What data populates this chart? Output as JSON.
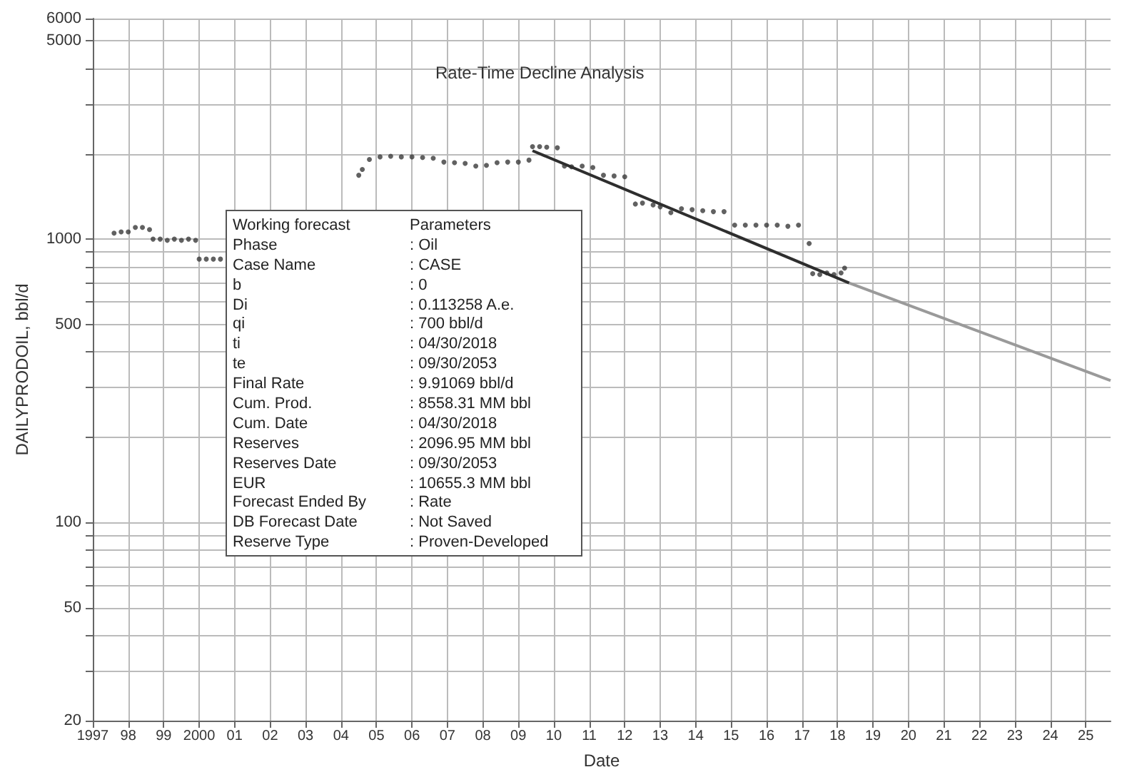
{
  "chart_data": {
    "type": "scatter",
    "title": "Rate-Time Decline Analysis",
    "xlabel": "Date",
    "ylabel": "DAILYPRODOIL, bbl/d",
    "log": "y",
    "grid": true,
    "marker": "circle",
    "xlim": [
      1997,
      2025.7
    ],
    "ylim": [
      20,
      6000
    ],
    "xticks": [
      {
        "value": 1997,
        "label": "1997"
      },
      {
        "value": 1998,
        "label": "98"
      },
      {
        "value": 1999,
        "label": "99"
      },
      {
        "value": 2000,
        "label": "2000"
      },
      {
        "value": 2001,
        "label": "01"
      },
      {
        "value": 2002,
        "label": "02"
      },
      {
        "value": 2003,
        "label": "03"
      },
      {
        "value": 2004,
        "label": "04"
      },
      {
        "value": 2005,
        "label": "05"
      },
      {
        "value": 2006,
        "label": "06"
      },
      {
        "value": 2007,
        "label": "07"
      },
      {
        "value": 2008,
        "label": "08"
      },
      {
        "value": 2009,
        "label": "09"
      },
      {
        "value": 2010,
        "label": "10"
      },
      {
        "value": 2011,
        "label": "11"
      },
      {
        "value": 2012,
        "label": "12"
      },
      {
        "value": 2013,
        "label": "13"
      },
      {
        "value": 2014,
        "label": "14"
      },
      {
        "value": 2015,
        "label": "15"
      },
      {
        "value": 2016,
        "label": "16"
      },
      {
        "value": 2017,
        "label": "17"
      },
      {
        "value": 2018,
        "label": "18"
      },
      {
        "value": 2019,
        "label": "19"
      },
      {
        "value": 2020,
        "label": "20"
      },
      {
        "value": 2021,
        "label": "21"
      },
      {
        "value": 2022,
        "label": "22"
      },
      {
        "value": 2023,
        "label": "23"
      },
      {
        "value": 2024,
        "label": "24"
      },
      {
        "value": 2025,
        "label": "25"
      }
    ],
    "yticks": [
      20,
      {
        "value": 30,
        "label": null
      },
      {
        "value": 40,
        "label": null
      },
      50,
      {
        "value": 60,
        "label": null
      },
      {
        "value": 70,
        "label": null
      },
      {
        "value": 80,
        "label": null
      },
      {
        "value": 90,
        "label": null
      },
      100,
      {
        "value": 200,
        "label": null
      },
      {
        "value": 300,
        "label": null
      },
      {
        "value": 400,
        "label": null
      },
      500,
      {
        "value": 600,
        "label": null
      },
      {
        "value": 700,
        "label": null
      },
      {
        "value": 800,
        "label": null
      },
      {
        "value": 900,
        "label": null
      },
      1000,
      {
        "value": 2000,
        "label": null
      },
      {
        "value": 3000,
        "label": null
      },
      {
        "value": 4000,
        "label": null
      },
      5000,
      6000
    ],
    "series": [
      {
        "color": "#3a3a3a",
        "x": [
          1997.6,
          1997.8,
          1998.0,
          1998.2,
          1998.4,
          1998.6,
          1998.7,
          1998.9,
          1999.1,
          1999.3,
          1999.5,
          1999.7,
          1999.9,
          2000.0,
          2000.2,
          2000.4,
          2000.6,
          2004.5,
          2004.6,
          2004.8,
          2005.1,
          2005.4,
          2005.7,
          2006.0,
          2006.3,
          2006.6,
          2006.9,
          2007.2,
          2007.5,
          2007.8,
          2008.1,
          2008.4,
          2008.7,
          2009.0,
          2009.3,
          2009.4,
          2009.6,
          2009.8,
          2010.1,
          2010.3,
          2010.5,
          2010.8,
          2011.1,
          2011.4,
          2011.7,
          2012.0,
          2012.3,
          2012.5,
          2012.8,
          2013.0,
          2013.3,
          2013.6,
          2013.9,
          2014.2,
          2014.5,
          2014.8,
          2015.1,
          2015.4,
          2015.7,
          2016.0,
          2016.3,
          2016.6,
          2016.9,
          2017.2,
          2017.3,
          2017.5,
          2017.7,
          2017.9,
          2018.1,
          2018.2
        ],
        "values": [
          1050,
          1060,
          1060,
          1100,
          1100,
          1080,
          1000,
          1000,
          990,
          1000,
          990,
          1000,
          990,
          850,
          850,
          850,
          850,
          1680,
          1760,
          1910,
          1950,
          1960,
          1950,
          1950,
          1940,
          1930,
          1870,
          1860,
          1850,
          1810,
          1820,
          1860,
          1870,
          1870,
          1900,
          2120,
          2120,
          2110,
          2100,
          1810,
          1800,
          1810,
          1790,
          1680,
          1670,
          1660,
          1330,
          1340,
          1320,
          1300,
          1240,
          1280,
          1270,
          1260,
          1250,
          1250,
          1120,
          1120,
          1120,
          1120,
          1120,
          1110,
          1120,
          965,
          755,
          750,
          760,
          750,
          760,
          790
        ]
      },
      {
        "type": "line",
        "marker": "none",
        "color": "#2e2e2e",
        "x": [
          2009.4,
          2018.33
        ],
        "values": [
          2050,
          700
        ]
      },
      {
        "type": "line",
        "marker": "none",
        "color": "#9a9a9a",
        "x": [
          2018.33,
          2025.7
        ],
        "values": [
          700,
          317
        ]
      }
    ],
    "annotations": [
      "Working forecast",
      "Parameters",
      "Phase",
      ": Oil",
      "Case Name",
      ": CASE",
      "b",
      ": 0",
      "Di",
      ": 0.113258 A.e.",
      "qi",
      ": 700 bbl/d",
      "ti",
      ": 04/30/2018",
      "te",
      ": 09/30/2053",
      "Final Rate",
      ": 9.91069 bbl/d",
      "Cum. Prod.",
      ": 8558.31 MM bbl",
      "Cum. Date",
      ": 04/30/2018",
      "Reserves",
      ": 2096.95 MM bbl",
      "Reserves Date",
      ": 09/30/2053",
      "EUR",
      ": 10655.3 MM bbl",
      "Forecast Ended By",
      ": Rate",
      "DB Forecast Date",
      ": Not Saved",
      "Reserve Type",
      ": Proven-Developed"
    ]
  }
}
